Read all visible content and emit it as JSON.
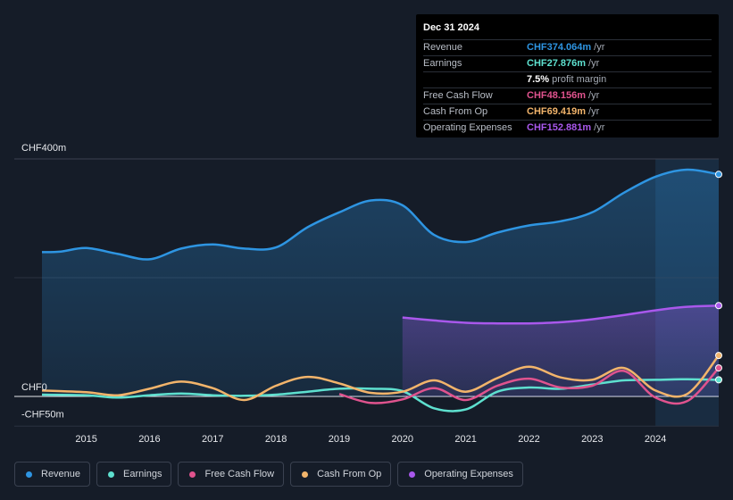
{
  "tooltip": {
    "date": "Dec 31 2024",
    "rows": [
      {
        "label": "Revenue",
        "value": "CHF374.064m",
        "unit": "/yr",
        "color": "#2e95e2"
      },
      {
        "label": "Earnings",
        "value": "CHF27.876m",
        "unit": "/yr",
        "color": "#5ee0cf"
      },
      {
        "label": "",
        "value": "7.5%",
        "unit": "profit margin",
        "color": "#ffffff"
      },
      {
        "label": "Free Cash Flow",
        "value": "CHF48.156m",
        "unit": "/yr",
        "color": "#e0538e"
      },
      {
        "label": "Cash From Op",
        "value": "CHF69.419m",
        "unit": "/yr",
        "color": "#f2b46b"
      },
      {
        "label": "Operating Expenses",
        "value": "CHF152.881m",
        "unit": "/yr",
        "color": "#a958ec"
      }
    ]
  },
  "legend": [
    {
      "label": "Revenue",
      "color": "#2e95e2"
    },
    {
      "label": "Earnings",
      "color": "#5ee0cf"
    },
    {
      "label": "Free Cash Flow",
      "color": "#e0538e"
    },
    {
      "label": "Cash From Op",
      "color": "#f2b46b"
    },
    {
      "label": "Operating Expenses",
      "color": "#a958ec"
    }
  ],
  "chart_data": {
    "type": "area",
    "y_label_top": "CHF400m",
    "y_label_zero": "CHF0",
    "y_label_bottom": "-CHF50m",
    "ylim": [
      -50,
      400
    ],
    "xlim": [
      2014.3,
      2025.0
    ],
    "highlight_start": 2024.0,
    "x_ticks": [
      {
        "label": "2015",
        "value": 2015
      },
      {
        "label": "2016",
        "value": 2016
      },
      {
        "label": "2017",
        "value": 2017
      },
      {
        "label": "2018",
        "value": 2018
      },
      {
        "label": "2019",
        "value": 2019
      },
      {
        "label": "2020",
        "value": 2020
      },
      {
        "label": "2021",
        "value": 2021
      },
      {
        "label": "2022",
        "value": 2022
      },
      {
        "label": "2023",
        "value": 2023
      },
      {
        "label": "2024",
        "value": 2024
      }
    ],
    "series": [
      {
        "name": "Revenue",
        "color": "#2e95e2",
        "fill": true,
        "points": [
          [
            2014.3,
            243
          ],
          [
            2014.6,
            244
          ],
          [
            2015.0,
            250
          ],
          [
            2015.5,
            240
          ],
          [
            2016.0,
            231
          ],
          [
            2016.5,
            249
          ],
          [
            2017.0,
            256
          ],
          [
            2017.5,
            249
          ],
          [
            2018.0,
            251
          ],
          [
            2018.5,
            285
          ],
          [
            2019.0,
            310
          ],
          [
            2019.5,
            330
          ],
          [
            2020.0,
            322
          ],
          [
            2020.5,
            272
          ],
          [
            2021.0,
            260
          ],
          [
            2021.5,
            276
          ],
          [
            2022.0,
            288
          ],
          [
            2022.5,
            295
          ],
          [
            2023.0,
            310
          ],
          [
            2023.5,
            343
          ],
          [
            2024.0,
            370
          ],
          [
            2024.5,
            382
          ],
          [
            2025.0,
            374
          ]
        ]
      },
      {
        "name": "Operating Expenses",
        "color": "#a958ec",
        "fill": true,
        "points": [
          [
            2020.0,
            133
          ],
          [
            2020.5,
            128
          ],
          [
            2021.0,
            124
          ],
          [
            2021.5,
            123
          ],
          [
            2022.0,
            123
          ],
          [
            2022.5,
            125
          ],
          [
            2023.0,
            130
          ],
          [
            2023.5,
            137
          ],
          [
            2024.0,
            145
          ],
          [
            2024.5,
            151
          ],
          [
            2025.0,
            153
          ]
        ]
      },
      {
        "name": "Earnings",
        "color": "#5ee0cf",
        "fill": false,
        "points": [
          [
            2014.3,
            3
          ],
          [
            2015.0,
            2
          ],
          [
            2015.5,
            -2
          ],
          [
            2016.0,
            2
          ],
          [
            2016.5,
            5
          ],
          [
            2017.0,
            2
          ],
          [
            2017.5,
            1
          ],
          [
            2018.0,
            3
          ],
          [
            2018.5,
            8
          ],
          [
            2019.0,
            13
          ],
          [
            2019.5,
            13
          ],
          [
            2020.0,
            9
          ],
          [
            2020.5,
            -20
          ],
          [
            2021.0,
            -22
          ],
          [
            2021.5,
            8
          ],
          [
            2022.0,
            15
          ],
          [
            2022.5,
            13
          ],
          [
            2023.0,
            20
          ],
          [
            2023.5,
            27
          ],
          [
            2024.0,
            28
          ],
          [
            2024.5,
            29
          ],
          [
            2025.0,
            28
          ]
        ]
      },
      {
        "name": "Free Cash Flow",
        "color": "#e0538e",
        "fill": false,
        "points": [
          [
            2019.0,
            4
          ],
          [
            2019.5,
            -11
          ],
          [
            2020.0,
            -5
          ],
          [
            2020.5,
            14
          ],
          [
            2021.0,
            -6
          ],
          [
            2021.5,
            18
          ],
          [
            2022.0,
            30
          ],
          [
            2022.5,
            15
          ],
          [
            2023.0,
            18
          ],
          [
            2023.5,
            43
          ],
          [
            2024.0,
            -2
          ],
          [
            2024.5,
            -8
          ],
          [
            2025.0,
            48
          ]
        ]
      },
      {
        "name": "Cash From Op",
        "color": "#f2b46b",
        "fill": false,
        "points": [
          [
            2014.3,
            10
          ],
          [
            2015.0,
            7
          ],
          [
            2015.5,
            2
          ],
          [
            2016.0,
            13
          ],
          [
            2016.5,
            25
          ],
          [
            2017.0,
            14
          ],
          [
            2017.5,
            -6
          ],
          [
            2018.0,
            18
          ],
          [
            2018.5,
            33
          ],
          [
            2019.0,
            22
          ],
          [
            2019.5,
            6
          ],
          [
            2020.0,
            8
          ],
          [
            2020.5,
            27
          ],
          [
            2021.0,
            8
          ],
          [
            2021.5,
            31
          ],
          [
            2022.0,
            50
          ],
          [
            2022.5,
            32
          ],
          [
            2023.0,
            28
          ],
          [
            2023.5,
            48
          ],
          [
            2024.0,
            10
          ],
          [
            2024.5,
            4
          ],
          [
            2025.0,
            69
          ]
        ]
      }
    ]
  }
}
